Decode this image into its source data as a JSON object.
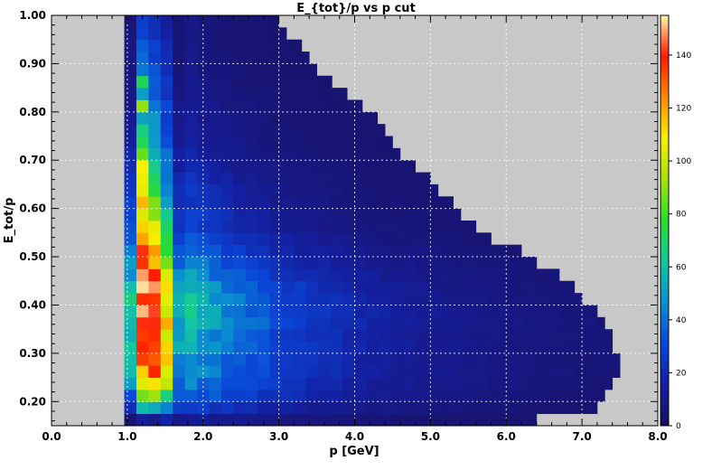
{
  "chart_data": {
    "type": "heatmap",
    "title": "E_{tot}/p vs p cut",
    "xlabel": "p [GeV]",
    "ylabel": "E_tot/p",
    "xlim": [
      0.0,
      8.0
    ],
    "ylim": [
      0.15,
      1.0
    ],
    "x_bin_width": 0.16,
    "y_bin_width": 0.025,
    "x_ticks": [
      "0.0",
      "1.0",
      "2.0",
      "3.0",
      "4.0",
      "5.0",
      "6.0",
      "7.0",
      "8.0"
    ],
    "y_ticks": [
      "0.20",
      "0.30",
      "0.40",
      "0.50",
      "0.60",
      "0.70",
      "0.80",
      "0.90",
      "1.00"
    ],
    "y_tick_values": [
      0.2,
      0.3,
      0.4,
      0.5,
      0.6,
      0.7,
      0.8,
      0.9,
      1.0
    ],
    "z_range": [
      0,
      155
    ],
    "colorbar_ticks": [
      "0",
      "20",
      "40",
      "60",
      "80",
      "100",
      "120",
      "140"
    ],
    "colorbar_tick_values": [
      0,
      20,
      40,
      60,
      80,
      100,
      120,
      140
    ],
    "colormap": [
      "#1a0f5e",
      "#141fa0",
      "#0a46d8",
      "#0a8fd0",
      "#12c8a0",
      "#2bdc2b",
      "#a8e20a",
      "#f8f000",
      "#ff8c00",
      "#ff1a00",
      "#fff6b0"
    ],
    "background_color": "#c8c8c8",
    "grid": true,
    "grid_style": "dotted",
    "x_edge_min": 0.96,
    "y_bins": [
      {
        "y": 0.15,
        "xmax": 6.4,
        "profile": [
          5,
          15,
          12,
          18,
          10
        ]
      },
      {
        "y": 0.175,
        "xmax": 7.2,
        "profile": [
          20,
          55,
          60,
          45,
          25
        ]
      },
      {
        "y": 0.2,
        "xmax": 7.3,
        "profile": [
          35,
          85,
          95,
          70,
          35
        ]
      },
      {
        "y": 0.225,
        "xmax": 7.4,
        "profile": [
          50,
          105,
          115,
          90,
          40
        ]
      },
      {
        "y": 0.25,
        "xmax": 7.5,
        "profile": [
          60,
          120,
          125,
          100,
          45
        ]
      },
      {
        "y": 0.275,
        "xmax": 7.5,
        "profile": [
          60,
          125,
          130,
          105,
          45
        ]
      },
      {
        "y": 0.3,
        "xmax": 7.4,
        "profile": [
          60,
          130,
          132,
          108,
          50
        ]
      },
      {
        "y": 0.325,
        "xmax": 7.4,
        "profile": [
          60,
          135,
          135,
          110,
          50
        ]
      },
      {
        "y": 0.35,
        "xmax": 7.3,
        "profile": [
          60,
          140,
          138,
          110,
          55
        ]
      },
      {
        "y": 0.375,
        "xmax": 7.2,
        "profile": [
          60,
          150,
          140,
          112,
          55
        ]
      },
      {
        "y": 0.4,
        "xmax": 7.0,
        "profile": [
          60,
          155,
          140,
          110,
          55
        ]
      },
      {
        "y": 0.425,
        "xmax": 6.9,
        "profile": [
          55,
          150,
          135,
          105,
          50
        ]
      },
      {
        "y": 0.45,
        "xmax": 6.7,
        "profile": [
          50,
          145,
          130,
          100,
          45
        ]
      },
      {
        "y": 0.475,
        "xmax": 6.4,
        "profile": [
          45,
          140,
          125,
          95,
          40
        ]
      },
      {
        "y": 0.5,
        "xmax": 6.2,
        "profile": [
          40,
          130,
          115,
          85,
          35
        ]
      },
      {
        "y": 0.525,
        "xmax": 5.8,
        "profile": [
          35,
          125,
          105,
          80,
          30
        ]
      },
      {
        "y": 0.55,
        "xmax": 5.6,
        "profile": [
          30,
          115,
          95,
          70,
          25
        ]
      },
      {
        "y": 0.575,
        "xmax": 5.4,
        "profile": [
          30,
          110,
          90,
          65,
          25
        ]
      },
      {
        "y": 0.6,
        "xmax": 5.3,
        "profile": [
          28,
          105,
          80,
          55,
          22
        ]
      },
      {
        "y": 0.625,
        "xmax": 5.1,
        "profile": [
          25,
          100,
          75,
          50,
          20
        ]
      },
      {
        "y": 0.65,
        "xmax": 5.0,
        "profile": [
          22,
          98,
          70,
          45,
          18
        ]
      },
      {
        "y": 0.675,
        "xmax": 4.8,
        "profile": [
          20,
          100,
          65,
          40,
          15
        ]
      },
      {
        "y": 0.7,
        "xmax": 4.6,
        "profile": [
          18,
          95,
          60,
          38,
          14
        ]
      },
      {
        "y": 0.725,
        "xmax": 4.5,
        "profile": [
          15,
          70,
          55,
          35,
          12
        ]
      },
      {
        "y": 0.75,
        "xmax": 4.4,
        "profile": [
          14,
          60,
          50,
          32,
          10
        ]
      },
      {
        "y": 0.775,
        "xmax": 4.3,
        "profile": [
          12,
          55,
          45,
          30,
          10
        ]
      },
      {
        "y": 0.8,
        "xmax": 4.1,
        "profile": [
          10,
          85,
          40,
          28,
          9
        ]
      },
      {
        "y": 0.825,
        "xmax": 3.9,
        "profile": [
          10,
          55,
          38,
          26,
          8
        ]
      },
      {
        "y": 0.85,
        "xmax": 3.7,
        "profile": [
          9,
          65,
          35,
          24,
          7
        ]
      },
      {
        "y": 0.875,
        "xmax": 3.5,
        "profile": [
          8,
          45,
          32,
          22,
          6
        ]
      },
      {
        "y": 0.9,
        "xmax": 3.4,
        "profile": [
          8,
          40,
          30,
          20,
          6
        ]
      },
      {
        "y": 0.925,
        "xmax": 3.3,
        "profile": [
          7,
          35,
          28,
          18,
          5
        ]
      },
      {
        "y": 0.95,
        "xmax": 3.1,
        "profile": [
          7,
          30,
          25,
          16,
          5
        ]
      },
      {
        "y": 0.975,
        "xmax": 3.0,
        "profile": [
          6,
          28,
          22,
          15,
          5
        ]
      }
    ]
  }
}
